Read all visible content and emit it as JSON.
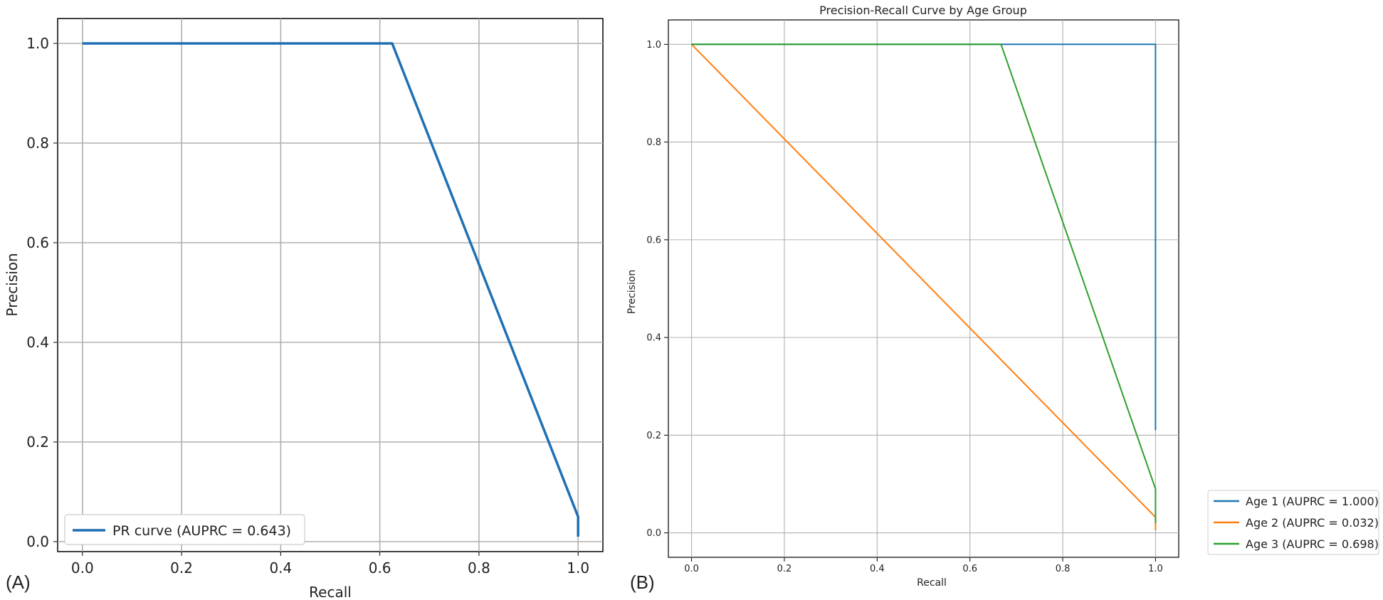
{
  "panels": {
    "a": {
      "label": "(A)"
    },
    "b": {
      "label": "(B)"
    }
  },
  "chart_data": [
    {
      "type": "line",
      "title": "",
      "xlabel": "Recall",
      "ylabel": "Precision",
      "xlim": [
        -0.05,
        1.05
      ],
      "ylim": [
        -0.02,
        1.05
      ],
      "xticks": [
        "0.0",
        "0.2",
        "0.4",
        "0.6",
        "0.8",
        "1.0"
      ],
      "yticks": [
        "0.0",
        "0.2",
        "0.4",
        "0.6",
        "0.8",
        "1.0"
      ],
      "grid": true,
      "legend_position": "lower-left",
      "series": [
        {
          "name": "PR curve  (AUPRC = 0.643)",
          "color": "#1f6fb2",
          "x": [
            0.0,
            0.625,
            1.0,
            1.0
          ],
          "y": [
            1.0,
            1.0,
            0.05,
            0.01
          ]
        }
      ]
    },
    {
      "type": "line",
      "title": "Precision-Recall Curve by Age Group",
      "xlabel": "Recall",
      "ylabel": "Precision",
      "xlim": [
        -0.05,
        1.05
      ],
      "ylim": [
        -0.05,
        1.05
      ],
      "xticks": [
        "0.0",
        "0.2",
        "0.4",
        "0.6",
        "0.8",
        "1.0"
      ],
      "yticks": [
        "0.0",
        "0.2",
        "0.4",
        "0.6",
        "0.8",
        "1.0"
      ],
      "grid": true,
      "legend_position": "outside-lower-right",
      "series": [
        {
          "name": "Age 1 (AUPRC = 1.000)",
          "color": "#1f77b4",
          "x": [
            0.0,
            1.0,
            1.0
          ],
          "y": [
            1.0,
            1.0,
            0.21
          ]
        },
        {
          "name": "Age 2 (AUPRC = 0.032)",
          "color": "#ff7f0e",
          "x": [
            0.0,
            1.0,
            1.0
          ],
          "y": [
            1.0,
            0.032,
            0.005
          ]
        },
        {
          "name": "Age 3 (AUPRC = 0.698)",
          "color": "#2ca02c",
          "x": [
            0.0,
            0.667,
            1.0,
            1.0
          ],
          "y": [
            1.0,
            1.0,
            0.09,
            0.02
          ]
        }
      ]
    }
  ]
}
